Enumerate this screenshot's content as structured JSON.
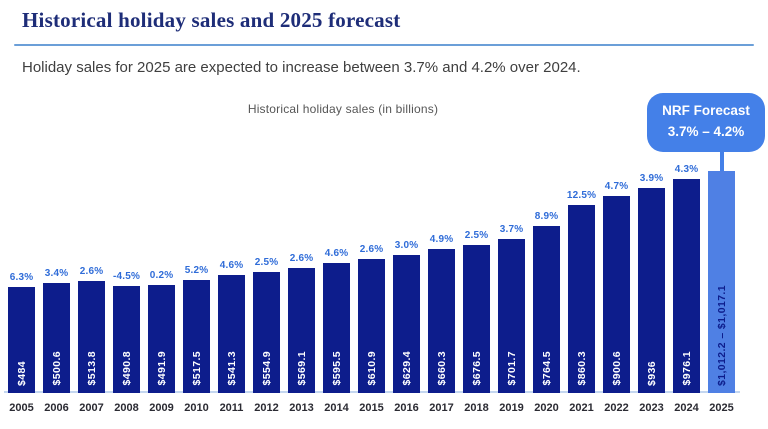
{
  "header": {
    "title": "Historical holiday sales and 2025 forecast",
    "subtitle": "Holiday sales for 2025 are expected to increase between 3.7% and 4.2% over 2024."
  },
  "chart": {
    "title": "Historical holiday sales (in billions)",
    "callout": {
      "line1": "NRF Forecast",
      "line2": "3.7% – 4.2%"
    }
  },
  "chart_data": {
    "type": "bar",
    "title": "Historical holiday sales (in billions)",
    "categories": [
      "2005",
      "2006",
      "2007",
      "2008",
      "2009",
      "2010",
      "2011",
      "2012",
      "2013",
      "2014",
      "2015",
      "2016",
      "2017",
      "2018",
      "2019",
      "2020",
      "2021",
      "2022",
      "2023",
      "2024",
      "2025"
    ],
    "values": [
      484,
      500.6,
      513.8,
      490.8,
      491.9,
      517.5,
      541.3,
      554.9,
      569.1,
      595.5,
      610.9,
      629.4,
      660.3,
      676.5,
      701.7,
      764.5,
      860.3,
      900.6,
      936,
      976.1,
      1014.65
    ],
    "value_labels": [
      "$484",
      "$500.6",
      "$513.8",
      "$490.8",
      "$491.9",
      "$517.5",
      "$541.3",
      "$554.9",
      "$569.1",
      "$595.5",
      "$610.9",
      "$629.4",
      "$660.3",
      "$676.5",
      "$701.7",
      "$764.5",
      "$860.3",
      "$900.6",
      "$936",
      "$976.1",
      "$1,012.2 – $1,017.1"
    ],
    "pct_labels": [
      "6.3%",
      "3.4%",
      "2.6%",
      "-4.5%",
      "0.2%",
      "5.2%",
      "4.6%",
      "2.5%",
      "2.6%",
      "4.6%",
      "2.6%",
      "3.0%",
      "4.9%",
      "2.5%",
      "3.7%",
      "8.9%",
      "12.5%",
      "4.7%",
      "3.9%",
      "4.3%",
      ""
    ],
    "forecast_index": 20,
    "forecast_range": [
      1012.2,
      1017.1
    ],
    "ylim": [
      0,
      1050
    ],
    "grid": false,
    "legend": null,
    "colors": {
      "bar": "#0d1d8c",
      "forecast_bar": "#4f80e4",
      "pct_label": "#2f6cd8",
      "callout_bg": "#4480e8",
      "bar_value_text": "#ffffff",
      "forecast_value_text": "#0d1d8c",
      "title_text": "#1e2d78",
      "divider": "#6b9fd8"
    }
  }
}
